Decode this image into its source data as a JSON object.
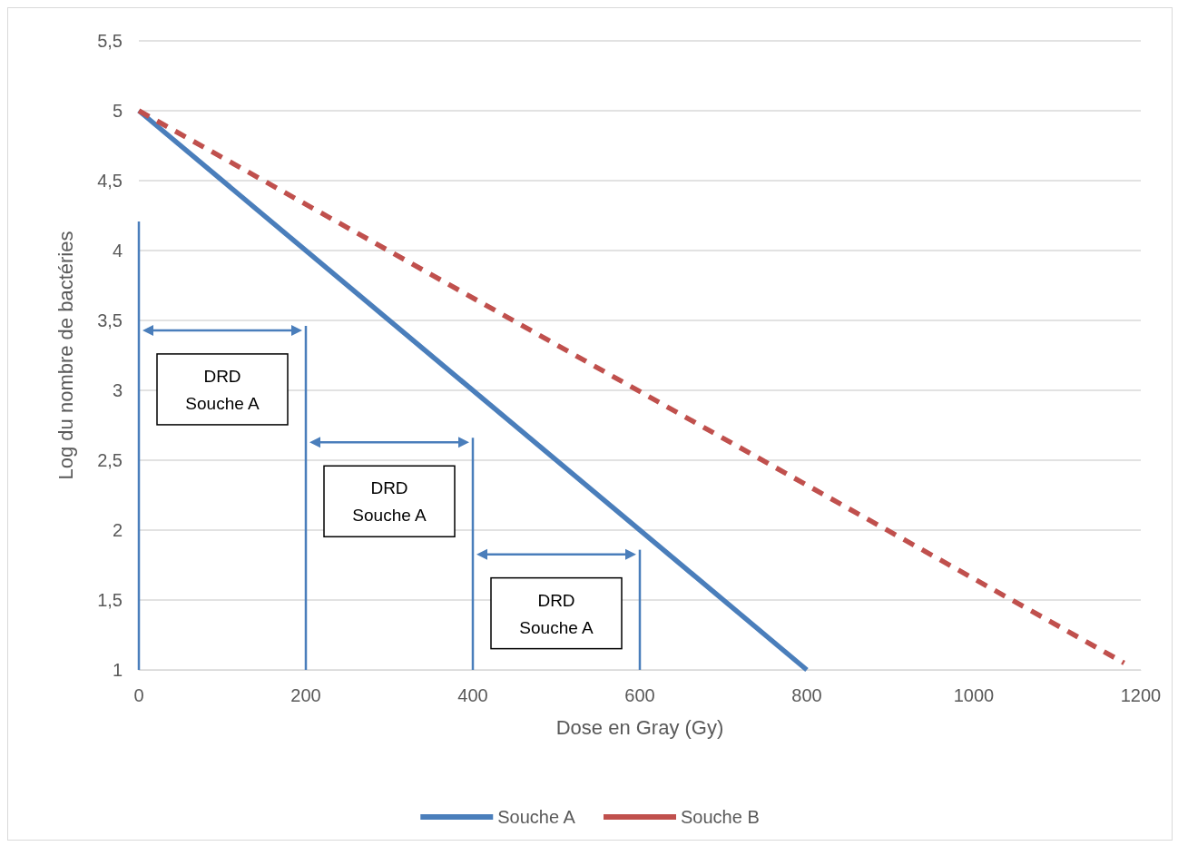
{
  "chart_data": {
    "type": "line",
    "xlabel": "Dose en Gray (Gy)",
    "ylabel": "Log du nombre de bactéries",
    "series": [
      {
        "name": "Souche A",
        "color": "#4a7ebb",
        "x": [
          0,
          800
        ],
        "values": [
          5,
          1
        ],
        "line_style": "solid"
      },
      {
        "name": "Souche B",
        "color": "#c0504d",
        "x": [
          0,
          1180
        ],
        "values": [
          5,
          1.05
        ],
        "line_style": "dashed"
      }
    ],
    "xlim": [
      0,
      1200
    ],
    "xticks": [
      0,
      200,
      400,
      600,
      800,
      1000,
      1200
    ],
    "ylim": [
      1,
      5.5
    ],
    "yticks": [
      1,
      {
        "value": 1.5,
        "label": "1,5"
      },
      2,
      {
        "value": 2.5,
        "label": "2,5"
      },
      3,
      {
        "value": 3.5,
        "label": "3,5"
      },
      4,
      {
        "value": 4.5,
        "label": "4,5"
      },
      5,
      {
        "value": 5.5,
        "label": "5,5"
      }
    ],
    "grid": "y",
    "legend": "bottom",
    "marker": "none",
    "annotations": [
      "DRD\nSouche A",
      "DRD\nSouche A",
      "DRD\nSouche A"
    ]
  }
}
